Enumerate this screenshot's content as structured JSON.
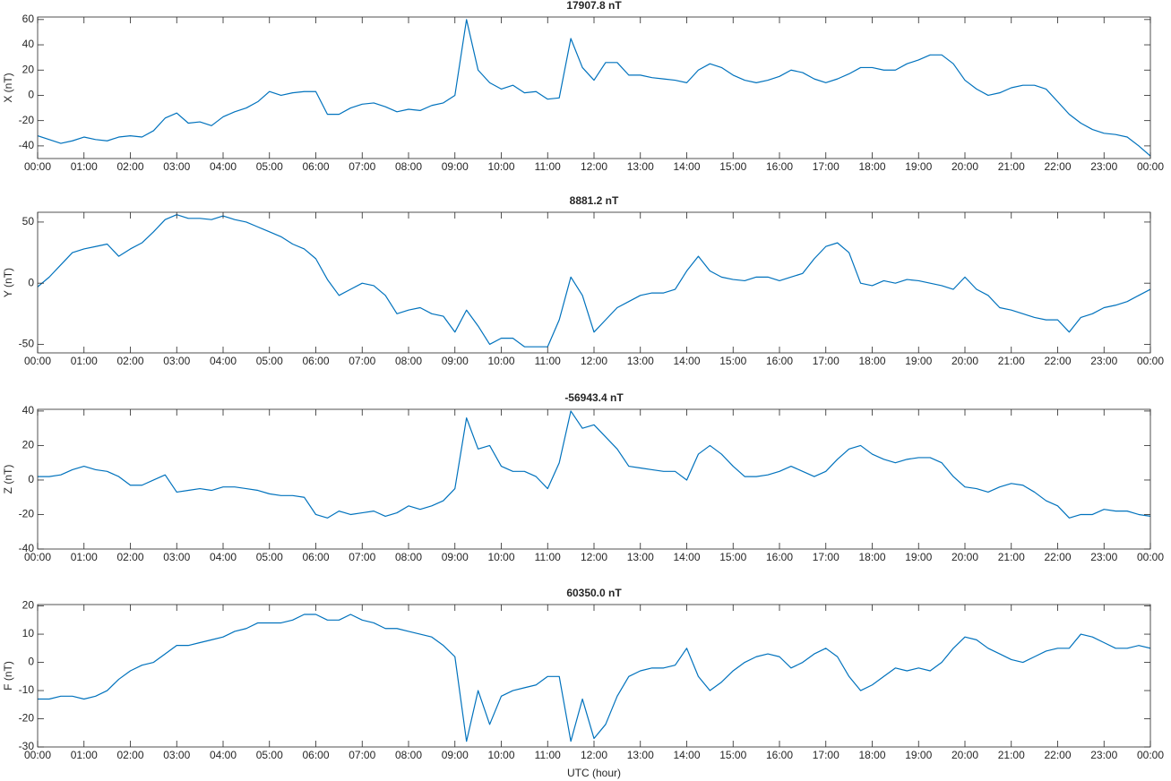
{
  "chart_data": [
    {
      "type": "line",
      "title": "17907.8 nT",
      "y_label": "X (nT)",
      "x": [
        0,
        0.25,
        0.5,
        0.75,
        1,
        1.25,
        1.5,
        1.75,
        2,
        2.25,
        2.5,
        2.75,
        3,
        3.25,
        3.5,
        3.75,
        4,
        4.25,
        4.5,
        4.75,
        5,
        5.25,
        5.5,
        5.75,
        6,
        6.25,
        6.5,
        6.75,
        7,
        7.25,
        7.5,
        7.75,
        8,
        8.25,
        8.5,
        8.75,
        9,
        9.25,
        9.5,
        9.75,
        10,
        10.25,
        10.5,
        10.75,
        11,
        11.25,
        11.5,
        11.75,
        12,
        12.25,
        12.5,
        12.75,
        13,
        13.25,
        13.5,
        13.75,
        14,
        14.25,
        14.5,
        14.75,
        15,
        15.25,
        15.5,
        15.75,
        16,
        16.25,
        16.5,
        16.75,
        17,
        17.25,
        17.5,
        17.75,
        18,
        18.25,
        18.5,
        18.75,
        19,
        19.25,
        19.5,
        19.75,
        20,
        20.25,
        20.5,
        20.75,
        21,
        21.25,
        21.5,
        21.75,
        22,
        22.25,
        22.5,
        22.75,
        23,
        23.25,
        23.5,
        23.75,
        24
      ],
      "values": [
        -32,
        -35,
        -38,
        -36,
        -33,
        -35,
        -36,
        -33,
        -32,
        -33,
        -28,
        -18,
        -14,
        -22,
        -21,
        -24,
        -17,
        -13,
        -10,
        -5,
        3,
        0,
        2,
        3,
        3,
        -15,
        -15,
        -10,
        -7,
        -6,
        -9,
        -13,
        -11,
        -12,
        -8,
        -6,
        0,
        60,
        20,
        10,
        5,
        8,
        2,
        3,
        -3,
        -2,
        45,
        22,
        12,
        26,
        26,
        16,
        16,
        14,
        13,
        12,
        10,
        20,
        25,
        22,
        16,
        12,
        10,
        12,
        15,
        20,
        18,
        13,
        10,
        13,
        17,
        22,
        22,
        20,
        20,
        25,
        28,
        32,
        32,
        25,
        12,
        5,
        0,
        2,
        6,
        8,
        8,
        5,
        -5,
        -15,
        -22,
        -27,
        -30,
        -31,
        -33,
        -40,
        -48
      ],
      "color": "#0072bd",
      "xlim": [
        0,
        24
      ],
      "ylim": [
        -50,
        62
      ],
      "yticks": [
        -40,
        -20,
        0,
        20,
        40,
        60
      ],
      "xticks": [
        {
          "value": 0,
          "label": "00:00"
        },
        {
          "value": 1,
          "label": "01:00"
        },
        {
          "value": 2,
          "label": "02:00"
        },
        {
          "value": 3,
          "label": "03:00"
        },
        {
          "value": 4,
          "label": "04:00"
        },
        {
          "value": 5,
          "label": "05:00"
        },
        {
          "value": 6,
          "label": "06:00"
        },
        {
          "value": 7,
          "label": "07:00"
        },
        {
          "value": 8,
          "label": "08:00"
        },
        {
          "value": 9,
          "label": "09:00"
        },
        {
          "value": 10,
          "label": "10:00"
        },
        {
          "value": 11,
          "label": "11:00"
        },
        {
          "value": 12,
          "label": "12:00"
        },
        {
          "value": 13,
          "label": "13:00"
        },
        {
          "value": 14,
          "label": "14:00"
        },
        {
          "value": 15,
          "label": "15:00"
        },
        {
          "value": 16,
          "label": "16:00"
        },
        {
          "value": 17,
          "label": "17:00"
        },
        {
          "value": 18,
          "label": "18:00"
        },
        {
          "value": 19,
          "label": "19:00"
        },
        {
          "value": 20,
          "label": "20:00"
        },
        {
          "value": 21,
          "label": "21:00"
        },
        {
          "value": 22,
          "label": "22:00"
        },
        {
          "value": 23,
          "label": "23:00"
        },
        {
          "value": 24,
          "label": "00:00"
        }
      ]
    },
    {
      "type": "line",
      "title": "8881.2 nT",
      "y_label": "Y (nT)",
      "x": [
        0,
        0.25,
        0.5,
        0.75,
        1,
        1.25,
        1.5,
        1.75,
        2,
        2.25,
        2.5,
        2.75,
        3,
        3.25,
        3.5,
        3.75,
        4,
        4.25,
        4.5,
        4.75,
        5,
        5.25,
        5.5,
        5.75,
        6,
        6.25,
        6.5,
        6.75,
        7,
        7.25,
        7.5,
        7.75,
        8,
        8.25,
        8.5,
        8.75,
        9,
        9.25,
        9.5,
        9.75,
        10,
        10.25,
        10.5,
        10.75,
        11,
        11.25,
        11.5,
        11.75,
        12,
        12.25,
        12.5,
        12.75,
        13,
        13.25,
        13.5,
        13.75,
        14,
        14.25,
        14.5,
        14.75,
        15,
        15.25,
        15.5,
        15.75,
        16,
        16.25,
        16.5,
        16.75,
        17,
        17.25,
        17.5,
        17.75,
        18,
        18.25,
        18.5,
        18.75,
        19,
        19.25,
        19.5,
        19.75,
        20,
        20.25,
        20.5,
        20.75,
        21,
        21.25,
        21.5,
        21.75,
        22,
        22.25,
        22.5,
        22.75,
        23,
        23.25,
        23.5,
        23.75,
        24
      ],
      "values": [
        -3,
        5,
        15,
        25,
        28,
        30,
        32,
        22,
        28,
        33,
        42,
        52,
        56,
        53,
        53,
        52,
        55,
        52,
        50,
        46,
        42,
        38,
        32,
        28,
        20,
        3,
        -10,
        -5,
        0,
        -2,
        -10,
        -25,
        -22,
        -20,
        -25,
        -27,
        -40,
        -22,
        -35,
        -50,
        -45,
        -45,
        -52,
        -52,
        -52,
        -30,
        5,
        -10,
        -40,
        -30,
        -20,
        -15,
        -10,
        -8,
        -8,
        -5,
        10,
        22,
        10,
        5,
        3,
        2,
        5,
        5,
        2,
        5,
        8,
        20,
        30,
        33,
        25,
        0,
        -2,
        2,
        0,
        3,
        2,
        0,
        -2,
        -5,
        5,
        -5,
        -10,
        -20,
        -22,
        -25,
        -28,
        -30,
        -30,
        -40,
        -28,
        -25,
        -20,
        -18,
        -15,
        -10,
        -5
      ],
      "color": "#0072bd",
      "xlim": [
        0,
        24
      ],
      "ylim": [
        -57,
        58
      ],
      "yticks": [
        -50,
        0,
        50
      ],
      "xticks": [
        {
          "value": 0,
          "label": "00:00"
        },
        {
          "value": 1,
          "label": "01:00"
        },
        {
          "value": 2,
          "label": "02:00"
        },
        {
          "value": 3,
          "label": "03:00"
        },
        {
          "value": 4,
          "label": "04:00"
        },
        {
          "value": 5,
          "label": "05:00"
        },
        {
          "value": 6,
          "label": "06:00"
        },
        {
          "value": 7,
          "label": "07:00"
        },
        {
          "value": 8,
          "label": "08:00"
        },
        {
          "value": 9,
          "label": "09:00"
        },
        {
          "value": 10,
          "label": "10:00"
        },
        {
          "value": 11,
          "label": "11:00"
        },
        {
          "value": 12,
          "label": "12:00"
        },
        {
          "value": 13,
          "label": "13:00"
        },
        {
          "value": 14,
          "label": "14:00"
        },
        {
          "value": 15,
          "label": "15:00"
        },
        {
          "value": 16,
          "label": "16:00"
        },
        {
          "value": 17,
          "label": "17:00"
        },
        {
          "value": 18,
          "label": "18:00"
        },
        {
          "value": 19,
          "label": "19:00"
        },
        {
          "value": 20,
          "label": "20:00"
        },
        {
          "value": 21,
          "label": "21:00"
        },
        {
          "value": 22,
          "label": "22:00"
        },
        {
          "value": 23,
          "label": "23:00"
        },
        {
          "value": 24,
          "label": "00:00"
        }
      ]
    },
    {
      "type": "line",
      "title": "-56943.4 nT",
      "y_label": "Z (nT)",
      "x": [
        0,
        0.25,
        0.5,
        0.75,
        1,
        1.25,
        1.5,
        1.75,
        2,
        2.25,
        2.5,
        2.75,
        3,
        3.25,
        3.5,
        3.75,
        4,
        4.25,
        4.5,
        4.75,
        5,
        5.25,
        5.5,
        5.75,
        6,
        6.25,
        6.5,
        6.75,
        7,
        7.25,
        7.5,
        7.75,
        8,
        8.25,
        8.5,
        8.75,
        9,
        9.25,
        9.5,
        9.75,
        10,
        10.25,
        10.5,
        10.75,
        11,
        11.25,
        11.5,
        11.75,
        12,
        12.25,
        12.5,
        12.75,
        13,
        13.25,
        13.5,
        13.75,
        14,
        14.25,
        14.5,
        14.75,
        15,
        15.25,
        15.5,
        15.75,
        16,
        16.25,
        16.5,
        16.75,
        17,
        17.25,
        17.5,
        17.75,
        18,
        18.25,
        18.5,
        18.75,
        19,
        19.25,
        19.5,
        19.75,
        20,
        20.25,
        20.5,
        20.75,
        21,
        21.25,
        21.5,
        21.75,
        22,
        22.25,
        22.5,
        22.75,
        23,
        23.25,
        23.5,
        23.75,
        24
      ],
      "values": [
        2,
        2,
        3,
        6,
        8,
        6,
        5,
        2,
        -3,
        -3,
        0,
        3,
        -7,
        -6,
        -5,
        -6,
        -4,
        -4,
        -5,
        -6,
        -8,
        -9,
        -9,
        -10,
        -20,
        -22,
        -18,
        -20,
        -19,
        -18,
        -21,
        -19,
        -15,
        -17,
        -15,
        -12,
        -5,
        36,
        18,
        20,
        8,
        5,
        5,
        2,
        -5,
        10,
        40,
        30,
        32,
        25,
        18,
        8,
        7,
        6,
        5,
        5,
        0,
        15,
        20,
        15,
        8,
        2,
        2,
        3,
        5,
        8,
        5,
        2,
        5,
        12,
        18,
        20,
        15,
        12,
        10,
        12,
        13,
        13,
        10,
        2,
        -4,
        -5,
        -7,
        -4,
        -2,
        -3,
        -7,
        -12,
        -15,
        -22,
        -20,
        -20,
        -17,
        -18,
        -18,
        -20,
        -21
      ],
      "color": "#0072bd",
      "xlim": [
        0,
        24
      ],
      "ylim": [
        -40,
        41
      ],
      "yticks": [
        -40,
        -20,
        0,
        20,
        40
      ],
      "xticks": [
        {
          "value": 0,
          "label": "00:00"
        },
        {
          "value": 1,
          "label": "01:00"
        },
        {
          "value": 2,
          "label": "02:00"
        },
        {
          "value": 3,
          "label": "03:00"
        },
        {
          "value": 4,
          "label": "04:00"
        },
        {
          "value": 5,
          "label": "05:00"
        },
        {
          "value": 6,
          "label": "06:00"
        },
        {
          "value": 7,
          "label": "07:00"
        },
        {
          "value": 8,
          "label": "08:00"
        },
        {
          "value": 9,
          "label": "09:00"
        },
        {
          "value": 10,
          "label": "10:00"
        },
        {
          "value": 11,
          "label": "11:00"
        },
        {
          "value": 12,
          "label": "12:00"
        },
        {
          "value": 13,
          "label": "13:00"
        },
        {
          "value": 14,
          "label": "14:00"
        },
        {
          "value": 15,
          "label": "15:00"
        },
        {
          "value": 16,
          "label": "16:00"
        },
        {
          "value": 17,
          "label": "17:00"
        },
        {
          "value": 18,
          "label": "18:00"
        },
        {
          "value": 19,
          "label": "19:00"
        },
        {
          "value": 20,
          "label": "20:00"
        },
        {
          "value": 21,
          "label": "21:00"
        },
        {
          "value": 22,
          "label": "22:00"
        },
        {
          "value": 23,
          "label": "23:00"
        },
        {
          "value": 24,
          "label": "00:00"
        }
      ]
    },
    {
      "type": "line",
      "title": "60350.0 nT",
      "y_label": "F (nT)",
      "x_label": "UTC (hour)",
      "x": [
        0,
        0.25,
        0.5,
        0.75,
        1,
        1.25,
        1.5,
        1.75,
        2,
        2.25,
        2.5,
        2.75,
        3,
        3.25,
        3.5,
        3.75,
        4,
        4.25,
        4.5,
        4.75,
        5,
        5.25,
        5.5,
        5.75,
        6,
        6.25,
        6.5,
        6.75,
        7,
        7.25,
        7.5,
        7.75,
        8,
        8.25,
        8.5,
        8.75,
        9,
        9.25,
        9.5,
        9.75,
        10,
        10.25,
        10.5,
        10.75,
        11,
        11.25,
        11.5,
        11.75,
        12,
        12.25,
        12.5,
        12.75,
        13,
        13.25,
        13.5,
        13.75,
        14,
        14.25,
        14.5,
        14.75,
        15,
        15.25,
        15.5,
        15.75,
        16,
        16.25,
        16.5,
        16.75,
        17,
        17.25,
        17.5,
        17.75,
        18,
        18.25,
        18.5,
        18.75,
        19,
        19.25,
        19.5,
        19.75,
        20,
        20.25,
        20.5,
        20.75,
        21,
        21.25,
        21.5,
        21.75,
        22,
        22.25,
        22.5,
        22.75,
        23,
        23.25,
        23.5,
        23.75,
        24
      ],
      "values": [
        -13,
        -13,
        -12,
        -12,
        -13,
        -12,
        -10,
        -6,
        -3,
        -1,
        0,
        3,
        6,
        6,
        7,
        8,
        9,
        11,
        12,
        14,
        14,
        14,
        15,
        17,
        17,
        15,
        15,
        17,
        15,
        14,
        12,
        12,
        11,
        10,
        9,
        6,
        2,
        -28,
        -10,
        -22,
        -12,
        -10,
        -9,
        -8,
        -5,
        -5,
        -28,
        -13,
        -27,
        -22,
        -12,
        -5,
        -3,
        -2,
        -2,
        -1,
        5,
        -5,
        -10,
        -7,
        -3,
        0,
        2,
        3,
        2,
        -2,
        0,
        3,
        5,
        2,
        -5,
        -10,
        -8,
        -5,
        -2,
        -3,
        -2,
        -3,
        0,
        5,
        9,
        8,
        5,
        3,
        1,
        0,
        2,
        4,
        5,
        5,
        10,
        9,
        7,
        5,
        5,
        6,
        5
      ],
      "color": "#0072bd",
      "xlim": [
        0,
        24
      ],
      "ylim": [
        -30,
        20.5
      ],
      "yticks": [
        -30,
        -20,
        -10,
        0,
        10,
        20
      ],
      "xticks": [
        {
          "value": 0,
          "label": "00:00"
        },
        {
          "value": 1,
          "label": "01:00"
        },
        {
          "value": 2,
          "label": "02:00"
        },
        {
          "value": 3,
          "label": "03:00"
        },
        {
          "value": 4,
          "label": "04:00"
        },
        {
          "value": 5,
          "label": "05:00"
        },
        {
          "value": 6,
          "label": "06:00"
        },
        {
          "value": 7,
          "label": "07:00"
        },
        {
          "value": 8,
          "label": "08:00"
        },
        {
          "value": 9,
          "label": "09:00"
        },
        {
          "value": 10,
          "label": "10:00"
        },
        {
          "value": 11,
          "label": "11:00"
        },
        {
          "value": 12,
          "label": "12:00"
        },
        {
          "value": 13,
          "label": "13:00"
        },
        {
          "value": 14,
          "label": "14:00"
        },
        {
          "value": 15,
          "label": "15:00"
        },
        {
          "value": 16,
          "label": "16:00"
        },
        {
          "value": 17,
          "label": "17:00"
        },
        {
          "value": 18,
          "label": "18:00"
        },
        {
          "value": 19,
          "label": "19:00"
        },
        {
          "value": 20,
          "label": "20:00"
        },
        {
          "value": 21,
          "label": "21:00"
        },
        {
          "value": 22,
          "label": "22:00"
        },
        {
          "value": 23,
          "label": "23:00"
        },
        {
          "value": 24,
          "label": "00:00"
        }
      ]
    }
  ]
}
